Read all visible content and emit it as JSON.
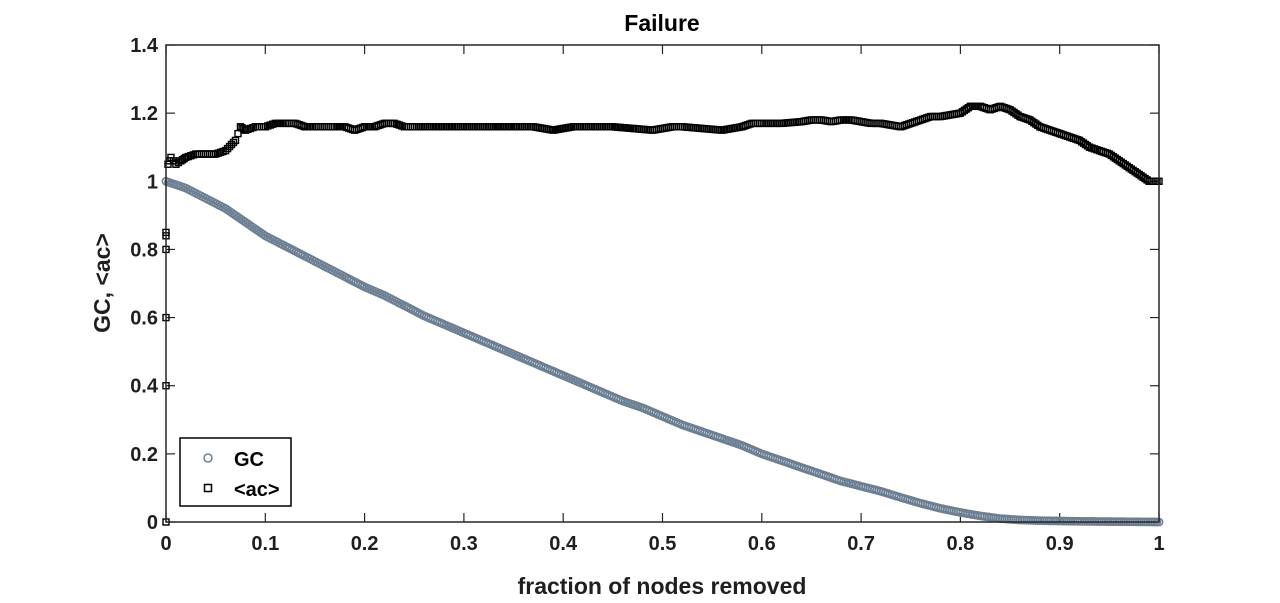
{
  "chart_data": {
    "type": "scatter",
    "title": "Failure",
    "xlabel": "fraction of nodes removed",
    "ylabel": "GC, <ac>",
    "xlim": [
      0,
      1
    ],
    "ylim": [
      0,
      1.4
    ],
    "x_ticks": [
      "0",
      "0.1",
      "0.2",
      "0.3",
      "0.4",
      "0.5",
      "0.6",
      "0.7",
      "0.8",
      "0.9",
      "1"
    ],
    "y_ticks": [
      "0",
      "0.2",
      "0.4",
      "0.6",
      "0.8",
      "1",
      "1.2",
      "1.4"
    ],
    "grid": false,
    "legend_position": "bottom-left",
    "series": [
      {
        "name": "GC",
        "marker": "circle",
        "color": "#6d7f93",
        "points": [
          [
            0.0,
            1.0
          ],
          [
            0.02,
            0.98
          ],
          [
            0.04,
            0.95
          ],
          [
            0.06,
            0.92
          ],
          [
            0.08,
            0.88
          ],
          [
            0.1,
            0.84
          ],
          [
            0.12,
            0.81
          ],
          [
            0.14,
            0.78
          ],
          [
            0.16,
            0.75
          ],
          [
            0.18,
            0.72
          ],
          [
            0.2,
            0.69
          ],
          [
            0.22,
            0.665
          ],
          [
            0.24,
            0.635
          ],
          [
            0.26,
            0.605
          ],
          [
            0.28,
            0.58
          ],
          [
            0.3,
            0.555
          ],
          [
            0.32,
            0.53
          ],
          [
            0.34,
            0.505
          ],
          [
            0.36,
            0.48
          ],
          [
            0.38,
            0.455
          ],
          [
            0.4,
            0.43
          ],
          [
            0.42,
            0.405
          ],
          [
            0.44,
            0.38
          ],
          [
            0.46,
            0.355
          ],
          [
            0.48,
            0.335
          ],
          [
            0.5,
            0.31
          ],
          [
            0.52,
            0.285
          ],
          [
            0.54,
            0.265
          ],
          [
            0.56,
            0.245
          ],
          [
            0.58,
            0.225
          ],
          [
            0.6,
            0.2
          ],
          [
            0.62,
            0.18
          ],
          [
            0.64,
            0.16
          ],
          [
            0.66,
            0.14
          ],
          [
            0.68,
            0.12
          ],
          [
            0.7,
            0.105
          ],
          [
            0.72,
            0.09
          ],
          [
            0.74,
            0.072
          ],
          [
            0.76,
            0.055
          ],
          [
            0.78,
            0.04
          ],
          [
            0.8,
            0.028
          ],
          [
            0.82,
            0.018
          ],
          [
            0.84,
            0.01
          ],
          [
            0.86,
            0.006
          ],
          [
            0.88,
            0.004
          ],
          [
            0.9,
            0.003
          ],
          [
            0.92,
            0.002
          ],
          [
            0.94,
            0.0015
          ],
          [
            0.96,
            0.001
          ],
          [
            0.98,
            0.0005
          ],
          [
            1.0,
            0.0
          ]
        ]
      },
      {
        "name": "<ac>",
        "marker": "square",
        "color": "#000000",
        "points": [
          [
            0.0,
            0.0
          ],
          [
            0.0,
            0.4
          ],
          [
            0.0,
            0.6
          ],
          [
            0.0,
            0.8
          ],
          [
            0.0,
            0.84
          ],
          [
            0.0,
            0.85
          ],
          [
            0.002,
            1.05
          ],
          [
            0.005,
            1.07
          ],
          [
            0.01,
            1.05
          ],
          [
            0.015,
            1.06
          ],
          [
            0.02,
            1.07
          ],
          [
            0.03,
            1.08
          ],
          [
            0.04,
            1.08
          ],
          [
            0.05,
            1.08
          ],
          [
            0.06,
            1.09
          ],
          [
            0.07,
            1.12
          ],
          [
            0.075,
            1.16
          ],
          [
            0.08,
            1.15
          ],
          [
            0.09,
            1.16
          ],
          [
            0.1,
            1.16
          ],
          [
            0.11,
            1.17
          ],
          [
            0.12,
            1.17
          ],
          [
            0.13,
            1.17
          ],
          [
            0.14,
            1.16
          ],
          [
            0.15,
            1.16
          ],
          [
            0.16,
            1.16
          ],
          [
            0.17,
            1.16
          ],
          [
            0.18,
            1.16
          ],
          [
            0.19,
            1.15
          ],
          [
            0.2,
            1.16
          ],
          [
            0.21,
            1.16
          ],
          [
            0.22,
            1.17
          ],
          [
            0.23,
            1.17
          ],
          [
            0.24,
            1.16
          ],
          [
            0.25,
            1.16
          ],
          [
            0.27,
            1.16
          ],
          [
            0.29,
            1.16
          ],
          [
            0.31,
            1.16
          ],
          [
            0.33,
            1.16
          ],
          [
            0.35,
            1.16
          ],
          [
            0.37,
            1.16
          ],
          [
            0.39,
            1.15
          ],
          [
            0.41,
            1.16
          ],
          [
            0.43,
            1.16
          ],
          [
            0.45,
            1.16
          ],
          [
            0.47,
            1.155
          ],
          [
            0.49,
            1.15
          ],
          [
            0.5,
            1.155
          ],
          [
            0.51,
            1.16
          ],
          [
            0.52,
            1.16
          ],
          [
            0.54,
            1.155
          ],
          [
            0.56,
            1.15
          ],
          [
            0.58,
            1.16
          ],
          [
            0.59,
            1.17
          ],
          [
            0.6,
            1.17
          ],
          [
            0.62,
            1.17
          ],
          [
            0.64,
            1.175
          ],
          [
            0.65,
            1.18
          ],
          [
            0.66,
            1.18
          ],
          [
            0.67,
            1.175
          ],
          [
            0.68,
            1.18
          ],
          [
            0.69,
            1.18
          ],
          [
            0.7,
            1.175
          ],
          [
            0.71,
            1.17
          ],
          [
            0.72,
            1.17
          ],
          [
            0.73,
            1.165
          ],
          [
            0.74,
            1.16
          ],
          [
            0.75,
            1.17
          ],
          [
            0.76,
            1.18
          ],
          [
            0.77,
            1.19
          ],
          [
            0.78,
            1.19
          ],
          [
            0.79,
            1.195
          ],
          [
            0.8,
            1.2
          ],
          [
            0.81,
            1.22
          ],
          [
            0.82,
            1.22
          ],
          [
            0.83,
            1.21
          ],
          [
            0.84,
            1.22
          ],
          [
            0.85,
            1.21
          ],
          [
            0.86,
            1.19
          ],
          [
            0.87,
            1.18
          ],
          [
            0.88,
            1.16
          ],
          [
            0.89,
            1.15
          ],
          [
            0.9,
            1.14
          ],
          [
            0.91,
            1.13
          ],
          [
            0.92,
            1.12
          ],
          [
            0.93,
            1.1
          ],
          [
            0.94,
            1.09
          ],
          [
            0.95,
            1.08
          ],
          [
            0.96,
            1.06
          ],
          [
            0.97,
            1.04
          ],
          [
            0.98,
            1.02
          ],
          [
            0.99,
            1.0
          ],
          [
            1.0,
            1.0
          ]
        ]
      }
    ]
  }
}
